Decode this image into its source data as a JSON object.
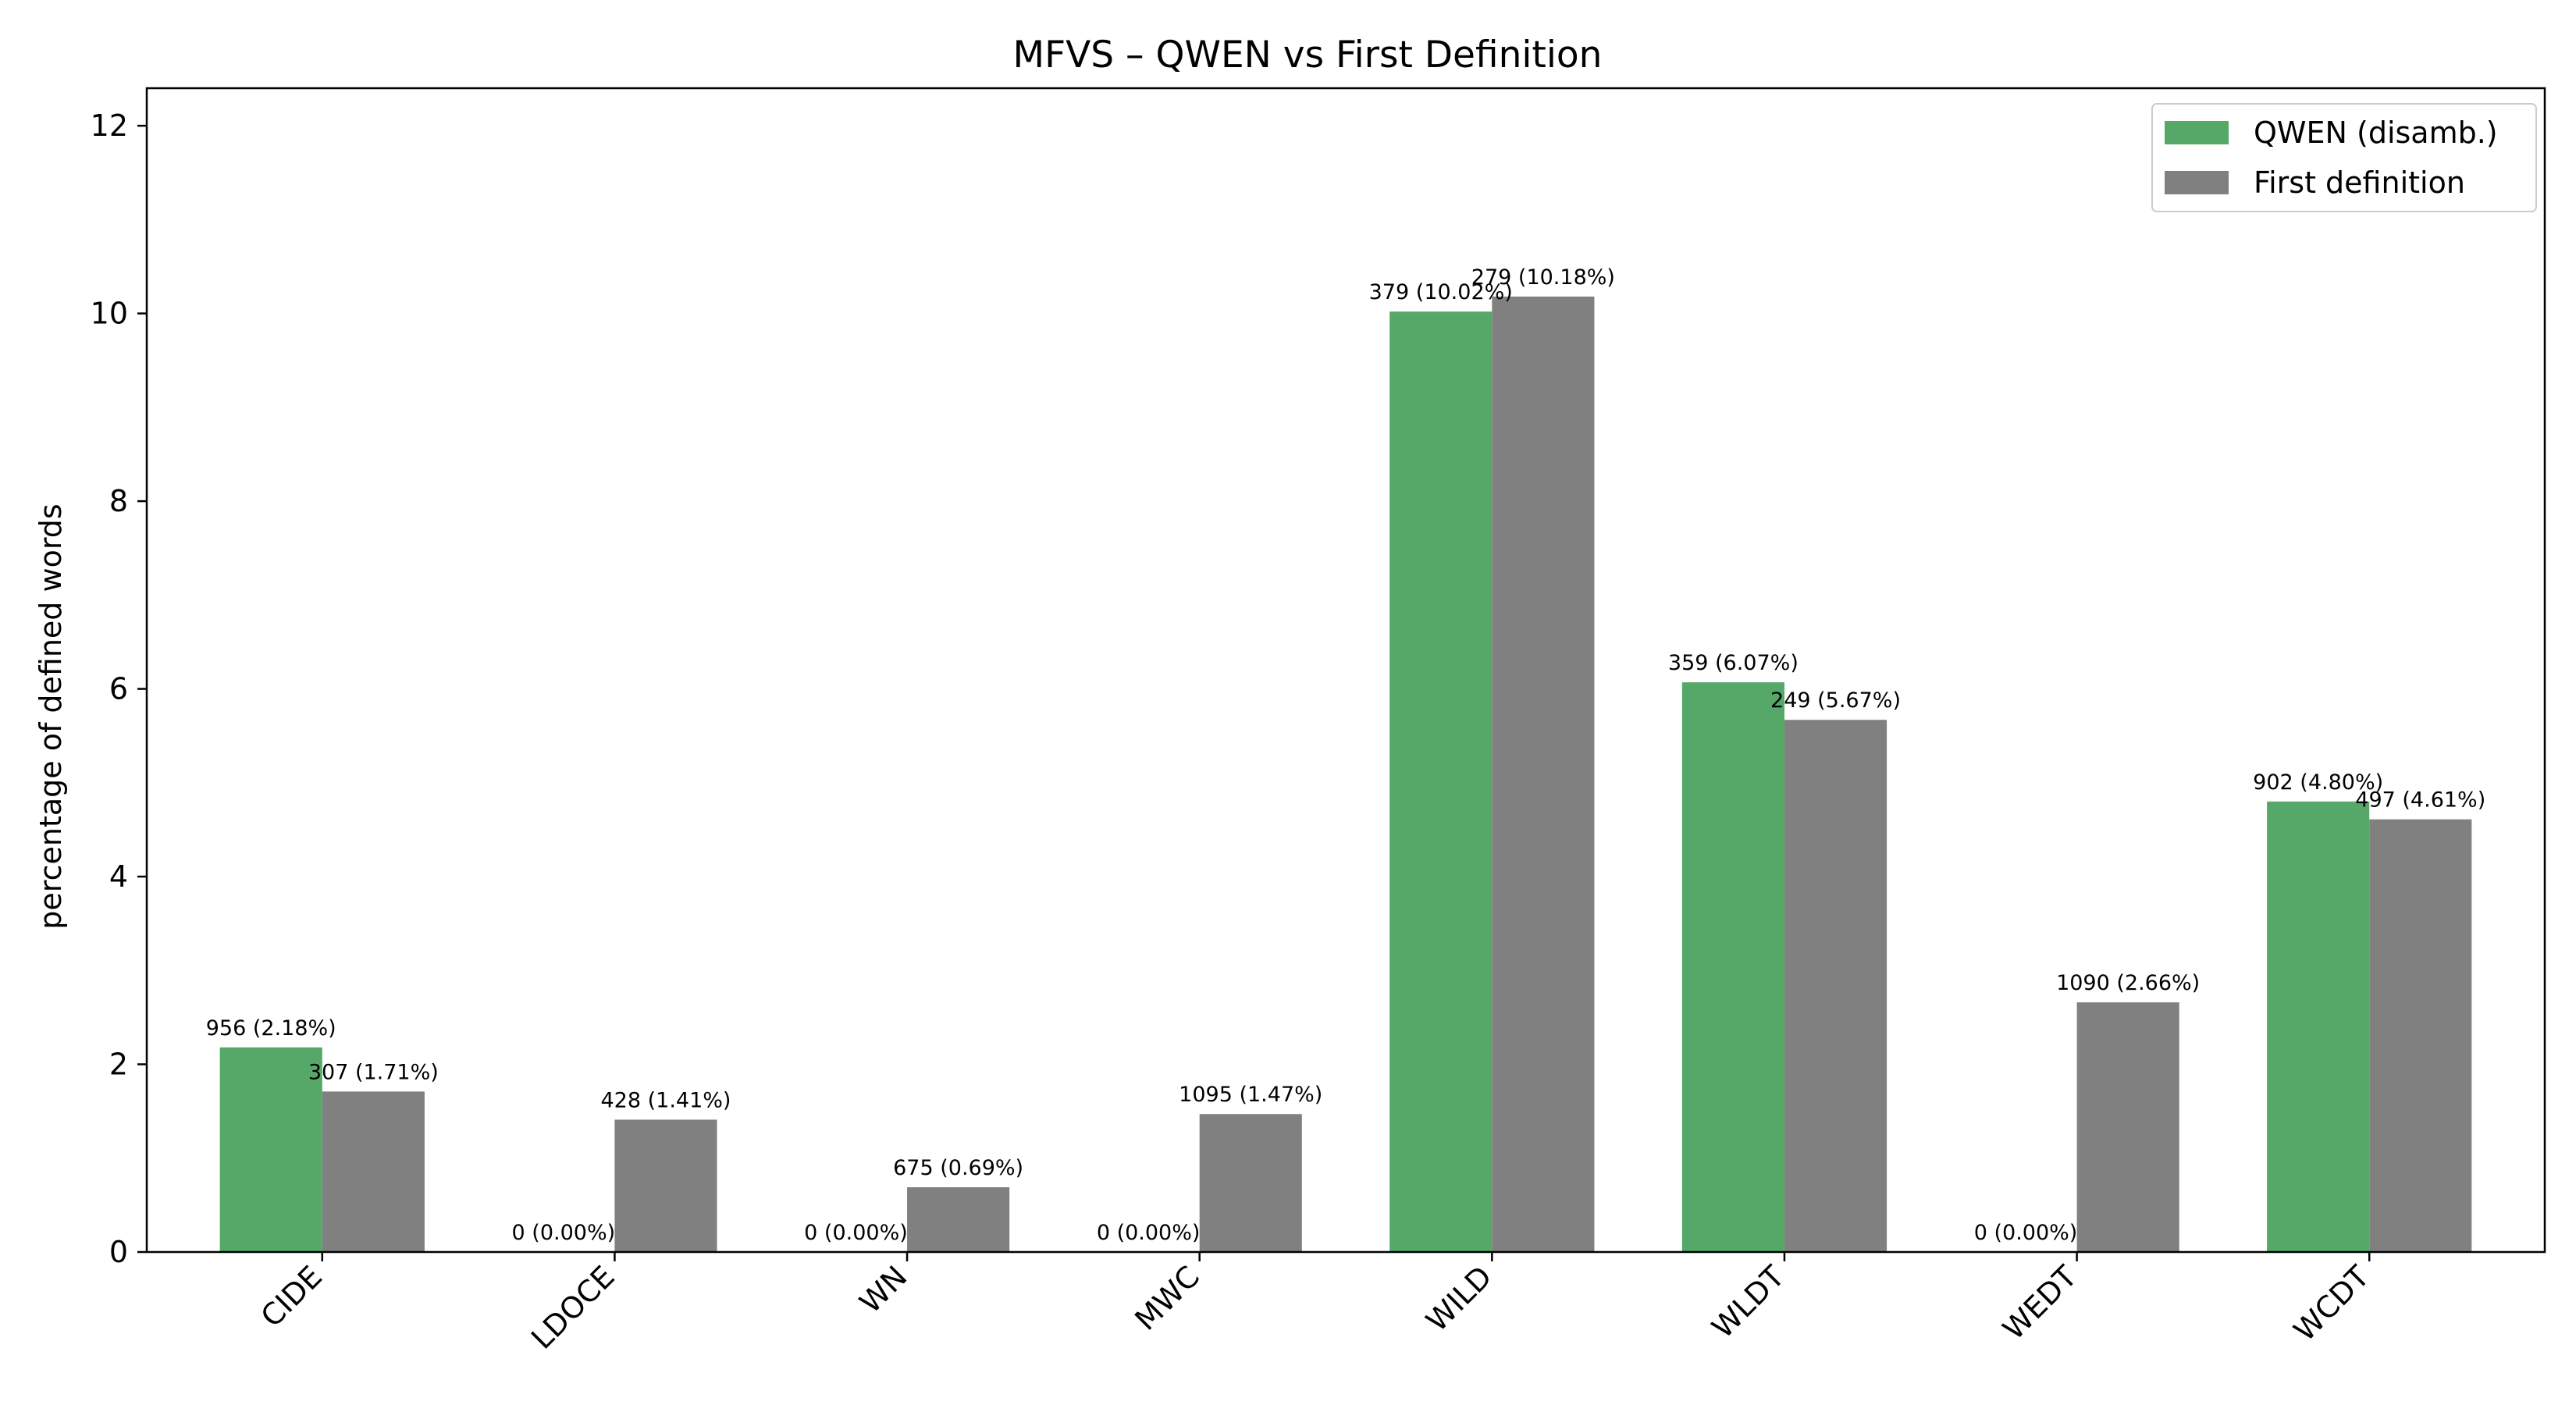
{
  "chart_data": {
    "type": "bar",
    "title": "MFVS – QWEN vs First Definition",
    "xlabel": "",
    "ylabel": "percentage of defined words",
    "ylim": [
      0,
      12.4
    ],
    "yticks": [
      0,
      2,
      4,
      6,
      8,
      10,
      12
    ],
    "grid": false,
    "legend_position": "top-right",
    "categories": [
      "CIDE",
      "LDOCE",
      "WN",
      "MWC",
      "WILD",
      "WLDT",
      "WEDT",
      "WCDT"
    ],
    "series": [
      {
        "name": "QWEN (disamb.)",
        "color": "#55a868",
        "values": [
          2.18,
          0.0,
          0.0,
          0.0,
          10.02,
          6.07,
          0.0,
          4.8
        ],
        "labels": [
          "956 (2.18%)",
          "0 (0.00%)",
          "0 (0.00%)",
          "0 (0.00%)",
          "379 (10.02%)",
          "359 (6.07%)",
          "0 (0.00%)",
          "902 (4.80%)"
        ]
      },
      {
        "name": "First definition",
        "color": "#808080",
        "values": [
          1.71,
          1.41,
          0.69,
          1.47,
          10.18,
          5.67,
          2.66,
          4.61
        ],
        "labels": [
          "307 (1.71%)",
          "428 (1.41%)",
          "675 (0.69%)",
          "1095 (1.47%)",
          "279 (10.18%)",
          "249 (5.67%)",
          "1090 (2.66%)",
          "497 (4.61%)"
        ]
      }
    ]
  }
}
